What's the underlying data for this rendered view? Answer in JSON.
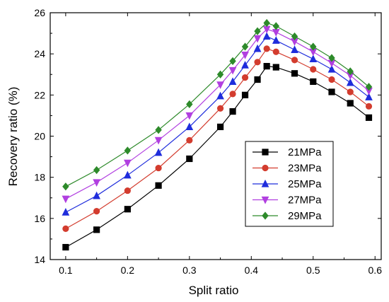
{
  "chart_data": {
    "type": "line",
    "xlabel": "Split ratio",
    "ylabel": "Recovery ratio (%)",
    "xlim": [
      0.075,
      0.61
    ],
    "ylim": [
      14,
      26
    ],
    "xticks": [
      "0.1",
      "0.2",
      "0.3",
      "0.4",
      "0.5",
      "0.6"
    ],
    "yticks": [
      "14",
      "16",
      "18",
      "20",
      "22",
      "24",
      "26"
    ],
    "x": [
      0.1,
      0.15,
      0.2,
      0.25,
      0.3,
      0.35,
      0.37,
      0.39,
      0.41,
      0.425,
      0.44,
      0.47,
      0.5,
      0.53,
      0.56,
      0.59
    ],
    "series": [
      {
        "name": "21MPa",
        "color": "#000000",
        "marker": "square",
        "values": [
          14.6,
          15.45,
          16.45,
          17.6,
          18.9,
          20.45,
          21.2,
          22.0,
          22.75,
          23.4,
          23.35,
          23.05,
          22.65,
          22.15,
          21.6,
          20.9
        ]
      },
      {
        "name": "23MPa",
        "color": "#d33c2e",
        "marker": "circle",
        "values": [
          15.5,
          16.35,
          17.35,
          18.45,
          19.8,
          21.35,
          22.05,
          22.85,
          23.6,
          24.25,
          24.1,
          23.7,
          23.25,
          22.75,
          22.15,
          21.45
        ]
      },
      {
        "name": "25MPa",
        "color": "#1f2ddc",
        "marker": "triangle-up",
        "values": [
          16.3,
          17.1,
          18.1,
          19.2,
          20.45,
          21.95,
          22.65,
          23.45,
          24.25,
          24.85,
          24.65,
          24.2,
          23.75,
          23.25,
          22.6,
          21.9
        ]
      },
      {
        "name": "27MPa",
        "color": "#b13fe0",
        "marker": "triangle-down",
        "values": [
          16.95,
          17.75,
          18.7,
          19.8,
          21.0,
          22.5,
          23.2,
          23.95,
          24.75,
          25.2,
          25.05,
          24.6,
          24.1,
          23.55,
          22.95,
          22.2
        ]
      },
      {
        "name": "29MPa",
        "color": "#2d8a2a",
        "marker": "diamond",
        "values": [
          17.55,
          18.35,
          19.3,
          20.3,
          21.55,
          23.0,
          23.65,
          24.35,
          25.1,
          25.5,
          25.35,
          24.85,
          24.35,
          23.8,
          23.15,
          22.4
        ]
      }
    ],
    "legend": "right-center",
    "grid": false
  }
}
